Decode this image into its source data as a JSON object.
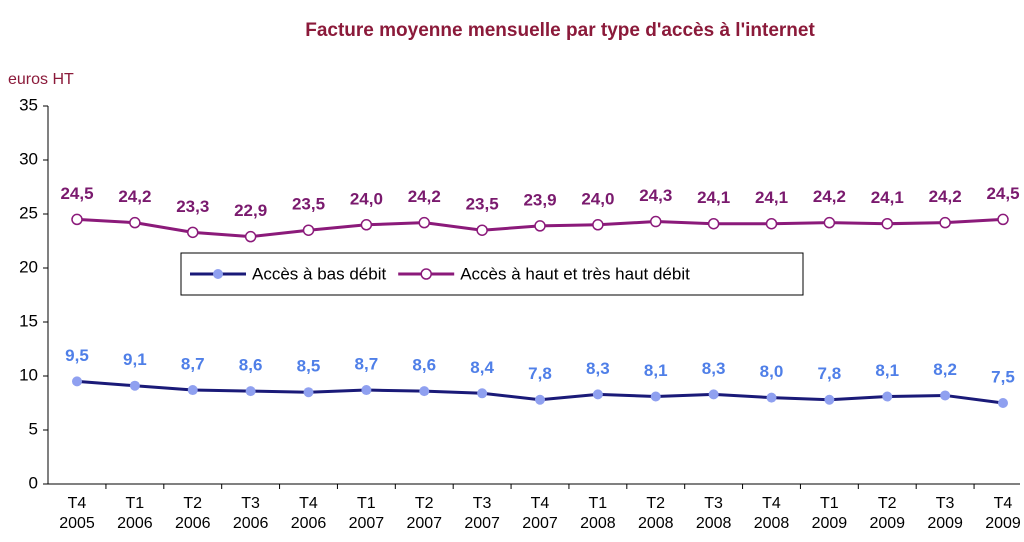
{
  "chart_data": {
    "type": "line",
    "title": "Facture moyenne mensuelle par type d'accès à l'internet",
    "y_label": "euros HT",
    "categories": [
      [
        "T4",
        "2005"
      ],
      [
        "T1",
        "2006"
      ],
      [
        "T2",
        "2006"
      ],
      [
        "T3",
        "2006"
      ],
      [
        "T4",
        "2006"
      ],
      [
        "T1",
        "2007"
      ],
      [
        "T2",
        "2007"
      ],
      [
        "T3",
        "2007"
      ],
      [
        "T4",
        "2007"
      ],
      [
        "T1",
        "2008"
      ],
      [
        "T2",
        "2008"
      ],
      [
        "T3",
        "2008"
      ],
      [
        "T4",
        "2008"
      ],
      [
        "T1",
        "2009"
      ],
      [
        "T2",
        "2009"
      ],
      [
        "T3",
        "2009"
      ],
      [
        "T4",
        "2009"
      ]
    ],
    "series": [
      {
        "name": "Accès à bas débit",
        "color": "#1a1a78",
        "marker_color": "#8fa0f0",
        "label_color": "#4f7fe8",
        "marker": "filled",
        "values": [
          9.5,
          9.1,
          8.7,
          8.6,
          8.5,
          8.7,
          8.6,
          8.4,
          7.8,
          8.3,
          8.1,
          8.3,
          8.0,
          7.8,
          8.1,
          8.2,
          7.5
        ],
        "value_labels": [
          "9,5",
          "9,1",
          "8,7",
          "8,6",
          "8,5",
          "8,7",
          "8,6",
          "8,4",
          "7,8",
          "8,3",
          "8,1",
          "8,3",
          "8,0",
          "7,8",
          "8,1",
          "8,2",
          "7,5"
        ]
      },
      {
        "name": "Accès à haut et très haut débit",
        "color": "#8b1a7a",
        "marker_color": "#8b1a7a",
        "label_color": "#7a1a6e",
        "marker": "hollow",
        "values": [
          24.5,
          24.2,
          23.3,
          22.9,
          23.5,
          24.0,
          24.2,
          23.5,
          23.9,
          24.0,
          24.3,
          24.1,
          24.1,
          24.2,
          24.1,
          24.2,
          24.5
        ],
        "value_labels": [
          "24,5",
          "24,2",
          "23,3",
          "22,9",
          "23,5",
          "24,0",
          "24,2",
          "23,5",
          "23,9",
          "24,0",
          "24,3",
          "24,1",
          "24,1",
          "24,2",
          "24,1",
          "24,2",
          "24,5"
        ]
      }
    ],
    "ylim": [
      0,
      35
    ],
    "yticks": [
      0,
      5,
      10,
      15,
      20,
      25,
      30,
      35
    ],
    "grid": false,
    "legend": "center"
  }
}
